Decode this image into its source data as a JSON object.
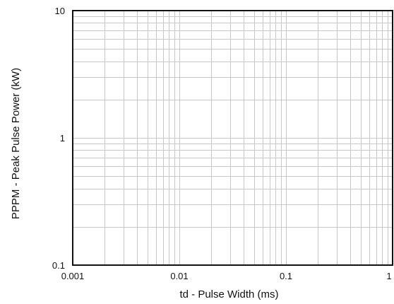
{
  "chart_data": {
    "type": "line",
    "title": "",
    "xlabel": "td - Pulse Width (ms)",
    "ylabel": "PPPM - Peak Pulse Power (kW)",
    "xscale": "log",
    "yscale": "log",
    "xlim": [
      0.001,
      1
    ],
    "ylim": [
      0.1,
      10
    ],
    "x_ticks": [
      {
        "value": 0.001,
        "label": "0.001"
      },
      {
        "value": 0.01,
        "label": "0.01"
      },
      {
        "value": 0.1,
        "label": "0.1"
      },
      {
        "value": 1,
        "label": "1"
      }
    ],
    "y_ticks": [
      {
        "value": 0.1,
        "label": "0.1"
      },
      {
        "value": 1,
        "label": "1"
      },
      {
        "value": 10,
        "label": "10"
      }
    ],
    "grid": true,
    "series": []
  }
}
